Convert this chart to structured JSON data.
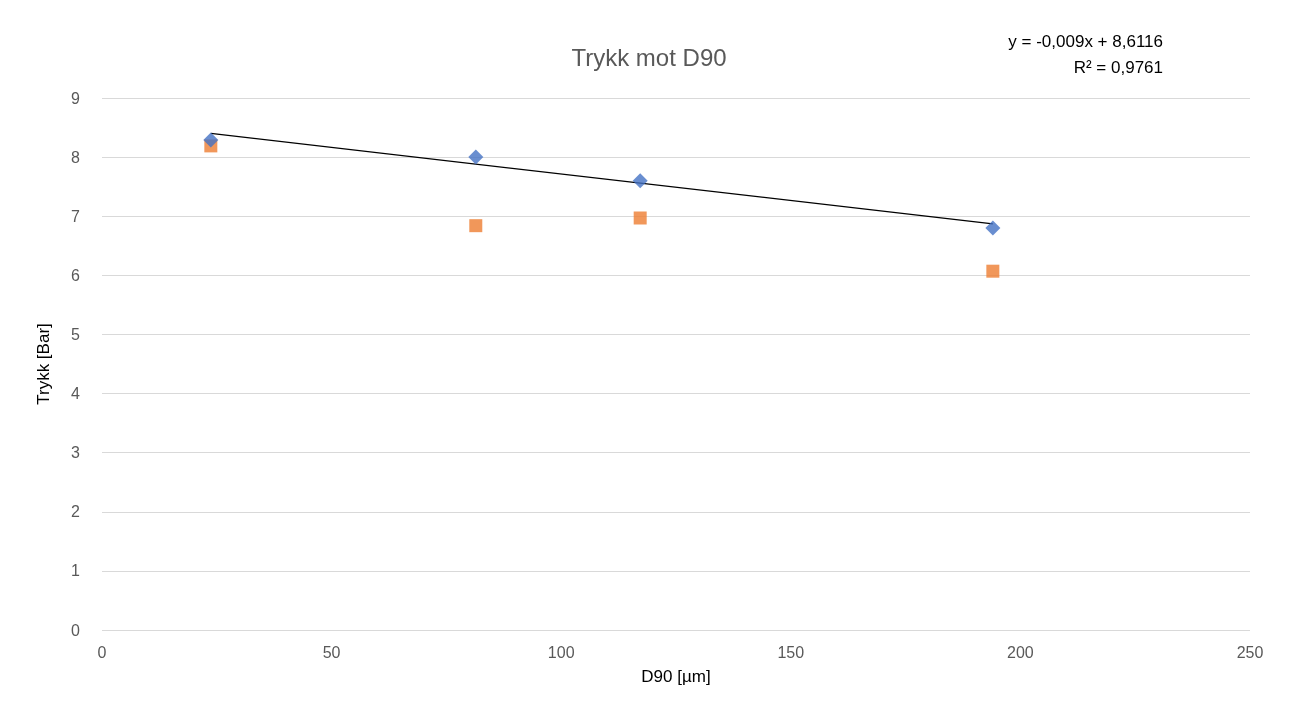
{
  "chart_data": {
    "type": "scatter",
    "title": "Trykk mot D90",
    "xlabel": "D90 [µm]",
    "ylabel": "Trykk [Bar]",
    "xlim": [
      0,
      250
    ],
    "xticks": [
      0,
      50,
      100,
      150,
      200,
      250
    ],
    "ylim": [
      0,
      9
    ],
    "yticks": [
      0,
      1,
      2,
      3,
      4,
      5,
      6,
      7,
      8,
      9
    ],
    "grid": "y",
    "annotations": [
      "y = -0,009x + 8,6116",
      "R² = 0,9761"
    ],
    "series": [
      {
        "color": "#4472c4",
        "marker": "diamond",
        "x": [
          23.7,
          81.4,
          117.2,
          194.0
        ],
        "values": [
          8.29,
          8.0,
          7.6,
          6.8
        ]
      },
      {
        "color": "#ed7d31",
        "marker": "square",
        "x": [
          23.7,
          81.4,
          117.2,
          194.0
        ],
        "values": [
          8.19,
          6.84,
          6.97,
          6.07
        ]
      },
      {
        "type": "line",
        "color": "#000000",
        "marker": "none",
        "x": [
          23.7,
          194.0
        ],
        "values": [
          8.4,
          6.87
        ]
      }
    ]
  }
}
